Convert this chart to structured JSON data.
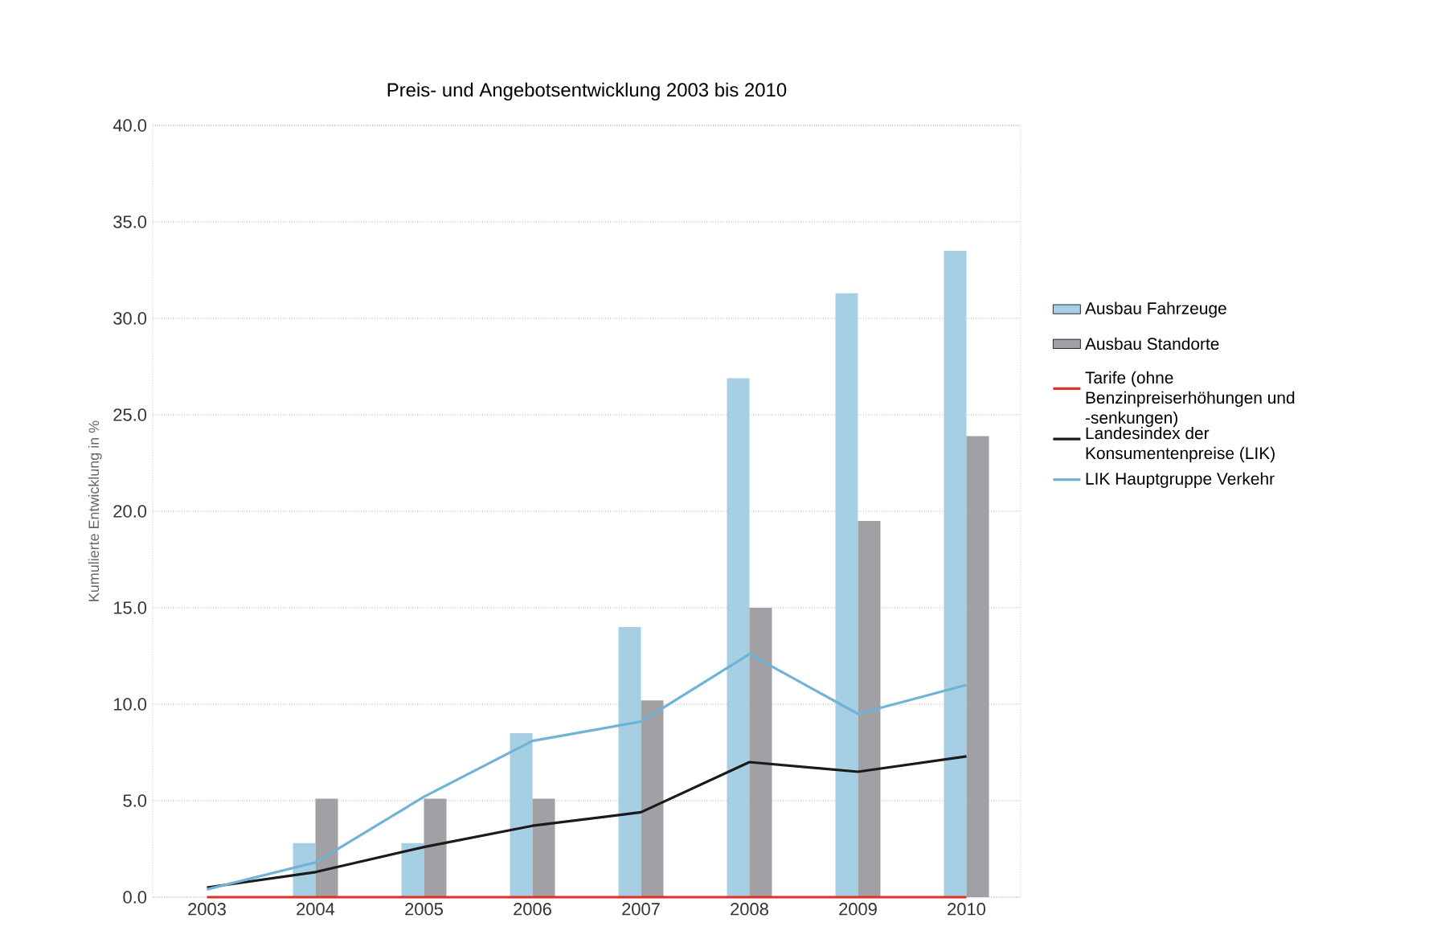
{
  "chart_data": {
    "type": "bar",
    "title": "Preis- und Angebotsentwicklung 2003 bis 2010",
    "ylabel": "Kumulierte Entwicklung in %",
    "categories": [
      "2003",
      "2004",
      "2005",
      "2006",
      "2007",
      "2008",
      "2009",
      "2010"
    ],
    "series": [
      {
        "name": "Ausbau Fahrzeuge",
        "color": "#a6cfe3",
        "values": [
          null,
          2.8,
          2.8,
          8.5,
          14.0,
          26.9,
          31.3,
          33.5
        ]
      },
      {
        "name": "Ausbau Standorte",
        "color": "#a1a1a5",
        "values": [
          null,
          5.1,
          5.1,
          5.1,
          10.2,
          15.0,
          19.5,
          23.9
        ]
      },
      {
        "name": "Tarife (ohne Benzinpreiserhöhungen und -senkungen)",
        "type": "line",
        "color": "#e0302a",
        "values": [
          0,
          0,
          0,
          0,
          0,
          0,
          0,
          0
        ]
      },
      {
        "name": "Landesindex der Konsumentenpreise (LIK)",
        "type": "line",
        "color": "#1a1a1a",
        "values": [
          0.5,
          1.3,
          2.6,
          3.7,
          4.4,
          7.0,
          6.5,
          7.3
        ]
      },
      {
        "name": "LIK Hauptgruppe Verkehr",
        "type": "line",
        "color": "#6fb3d6",
        "values": [
          0.4,
          1.8,
          5.2,
          8.1,
          9.1,
          12.6,
          9.5,
          11.0
        ]
      }
    ],
    "ylim": [
      0,
      40
    ],
    "yticks": [
      {
        "value": 0,
        "label": "0.0"
      },
      {
        "value": 5,
        "label": "5.0"
      },
      {
        "value": 10,
        "label": "10.0"
      },
      {
        "value": 15,
        "label": "15.0"
      },
      {
        "value": 20,
        "label": "20.0"
      },
      {
        "value": 25,
        "label": "25.0"
      },
      {
        "value": 30,
        "label": "30.0"
      },
      {
        "value": 35,
        "label": "35.0"
      },
      {
        "value": 40,
        "label": "40.0"
      }
    ],
    "grid": "y",
    "legend": "right",
    "line_style": "solid",
    "marker": "none"
  }
}
